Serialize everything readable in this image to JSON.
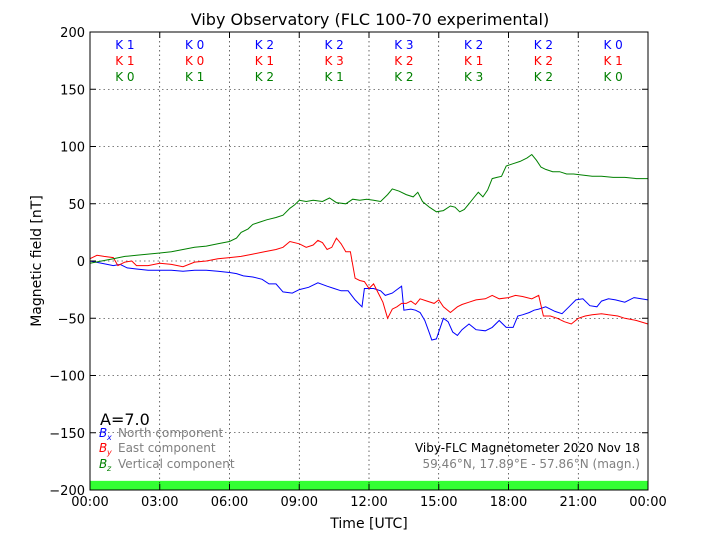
{
  "chart_data": {
    "type": "line",
    "title": "Viby Observatory (FLC 100-70 experimental)",
    "xlabel": "Time [UTC]",
    "ylabel": "Magnetic field [nT]",
    "xlim": [
      0,
      24
    ],
    "ylim": [
      -200,
      200
    ],
    "x_ticks": [
      {
        "v": 0,
        "label": "00:00"
      },
      {
        "v": 3,
        "label": "03:00"
      },
      {
        "v": 6,
        "label": "06:00"
      },
      {
        "v": 9,
        "label": "09:00"
      },
      {
        "v": 12,
        "label": "12:00"
      },
      {
        "v": 15,
        "label": "15:00"
      },
      {
        "v": 18,
        "label": "18:00"
      },
      {
        "v": 21,
        "label": "21:00"
      },
      {
        "v": 24,
        "label": "00:00"
      }
    ],
    "y_ticks": [
      {
        "v": 200,
        "label": "200"
      },
      {
        "v": 150,
        "label": "150"
      },
      {
        "v": 100,
        "label": "100"
      },
      {
        "v": 50,
        "label": "50"
      },
      {
        "v": 0,
        "label": "0"
      },
      {
        "v": -50,
        "label": "−50"
      },
      {
        "v": -100,
        "label": "−100"
      },
      {
        "v": -150,
        "label": "−150"
      },
      {
        "v": -200,
        "label": "−200"
      }
    ],
    "grid": true,
    "k_index": {
      "x_centers": [
        1.5,
        4.5,
        7.5,
        10.5,
        13.5,
        16.5,
        19.5,
        22.5
      ],
      "rows": [
        {
          "color": "#0000ff",
          "labels": [
            "K 1",
            "K 0",
            "K 2",
            "K 2",
            "K 3",
            "K 2",
            "K 2",
            "K 0"
          ]
        },
        {
          "color": "#ff0000",
          "labels": [
            "K 1",
            "K 0",
            "K 1",
            "K 3",
            "K 2",
            "K 1",
            "K 2",
            "K 1"
          ]
        },
        {
          "color": "#008000",
          "labels": [
            "K 0",
            "K 1",
            "K 2",
            "K 1",
            "K 2",
            "K 3",
            "K 2",
            "K 0"
          ]
        }
      ]
    },
    "a_index": "A=7.0",
    "legend": {
      "placement": "bottom-left",
      "entries": [
        {
          "sym": "B",
          "sub": "x",
          "label": "North component",
          "color": "#0000ff"
        },
        {
          "sym": "B",
          "sub": "y",
          "label": "East component",
          "color": "#ff0000"
        },
        {
          "sym": "B",
          "sub": "z",
          "label": "Vertical component",
          "color": "#008000"
        }
      ]
    },
    "station_info": {
      "line1": "Viby-FLC Magnetometer 2020 Nov 18",
      "line2": "59.46°N, 17.89°E - 57.86°N (magn.)"
    },
    "activity_band": {
      "color": "#33ff33",
      "y_range": [
        -200,
        -192
      ]
    },
    "series": [
      {
        "name": "North component",
        "color": "#0000ff",
        "points": [
          [
            0,
            0
          ],
          [
            0.5,
            -2
          ],
          [
            1,
            -4
          ],
          [
            1.3,
            -3
          ],
          [
            1.6,
            -6
          ],
          [
            2,
            -7
          ],
          [
            2.5,
            -8
          ],
          [
            3,
            -8
          ],
          [
            3.5,
            -8
          ],
          [
            4,
            -9
          ],
          [
            4.5,
            -8
          ],
          [
            5,
            -8
          ],
          [
            5.5,
            -9
          ],
          [
            6,
            -10
          ],
          [
            6.3,
            -11
          ],
          [
            6.6,
            -13
          ],
          [
            7,
            -14
          ],
          [
            7.4,
            -16
          ],
          [
            7.7,
            -20
          ],
          [
            8,
            -20
          ],
          [
            8.3,
            -27
          ],
          [
            8.7,
            -28
          ],
          [
            9,
            -25
          ],
          [
            9.4,
            -23
          ],
          [
            9.8,
            -19
          ],
          [
            10.2,
            -22
          ],
          [
            10.5,
            -24
          ],
          [
            10.8,
            -26
          ],
          [
            11.1,
            -26
          ],
          [
            11.4,
            -34
          ],
          [
            11.7,
            -40
          ],
          [
            11.8,
            -24
          ],
          [
            12.2,
            -24
          ],
          [
            12.5,
            -26
          ],
          [
            12.7,
            -30
          ],
          [
            13,
            -28
          ],
          [
            13.2,
            -25
          ],
          [
            13.4,
            -22
          ],
          [
            13.5,
            -43
          ],
          [
            13.8,
            -42
          ],
          [
            14,
            -43
          ],
          [
            14.2,
            -45
          ],
          [
            14.4,
            -52
          ],
          [
            14.6,
            -63
          ],
          [
            14.7,
            -69
          ],
          [
            14.9,
            -68
          ],
          [
            15.2,
            -50
          ],
          [
            15.4,
            -53
          ],
          [
            15.6,
            -62
          ],
          [
            15.8,
            -65
          ],
          [
            16,
            -60
          ],
          [
            16.3,
            -55
          ],
          [
            16.6,
            -60
          ],
          [
            17,
            -61
          ],
          [
            17.3,
            -58
          ],
          [
            17.6,
            -52
          ],
          [
            17.9,
            -58
          ],
          [
            18.2,
            -58
          ],
          [
            18.4,
            -48
          ],
          [
            18.6,
            -47
          ],
          [
            18.9,
            -45
          ],
          [
            19.1,
            -43
          ],
          [
            19.3,
            -42
          ],
          [
            19.6,
            -40
          ],
          [
            20,
            -44
          ],
          [
            20.3,
            -46
          ],
          [
            20.6,
            -40
          ],
          [
            20.9,
            -34
          ],
          [
            21.2,
            -33
          ],
          [
            21.5,
            -39
          ],
          [
            21.8,
            -40
          ],
          [
            22,
            -35
          ],
          [
            22.3,
            -33
          ],
          [
            22.6,
            -34
          ],
          [
            23,
            -36
          ],
          [
            23.4,
            -32
          ],
          [
            23.7,
            -33
          ],
          [
            24,
            -34
          ]
        ]
      },
      {
        "name": "East component",
        "color": "#ff0000",
        "points": [
          [
            0,
            2
          ],
          [
            0.3,
            5
          ],
          [
            0.6,
            4
          ],
          [
            1,
            3
          ],
          [
            1.2,
            -4
          ],
          [
            1.5,
            -1
          ],
          [
            1.8,
            0
          ],
          [
            2,
            -4
          ],
          [
            2.5,
            -4
          ],
          [
            3,
            -2
          ],
          [
            3.5,
            -3
          ],
          [
            4,
            -5
          ],
          [
            4.5,
            -1
          ],
          [
            5,
            0
          ],
          [
            5.5,
            2
          ],
          [
            6,
            3
          ],
          [
            6.5,
            4
          ],
          [
            7,
            6
          ],
          [
            7.5,
            8
          ],
          [
            8,
            10
          ],
          [
            8.3,
            12
          ],
          [
            8.6,
            17
          ],
          [
            9,
            15
          ],
          [
            9.3,
            12
          ],
          [
            9.6,
            14
          ],
          [
            9.8,
            18
          ],
          [
            10,
            16
          ],
          [
            10.2,
            10
          ],
          [
            10.4,
            12
          ],
          [
            10.6,
            20
          ],
          [
            10.8,
            15
          ],
          [
            11,
            8
          ],
          [
            11.2,
            8
          ],
          [
            11.4,
            -15
          ],
          [
            11.6,
            -17
          ],
          [
            11.8,
            -18
          ],
          [
            12,
            -24
          ],
          [
            12.2,
            -20
          ],
          [
            12.4,
            -28
          ],
          [
            12.6,
            -36
          ],
          [
            12.8,
            -50
          ],
          [
            13,
            -42
          ],
          [
            13.2,
            -40
          ],
          [
            13.4,
            -37
          ],
          [
            13.6,
            -37
          ],
          [
            13.8,
            -35
          ],
          [
            14,
            -38
          ],
          [
            14.2,
            -33
          ],
          [
            14.5,
            -35
          ],
          [
            14.8,
            -37
          ],
          [
            15,
            -34
          ],
          [
            15.2,
            -40
          ],
          [
            15.5,
            -45
          ],
          [
            15.8,
            -40
          ],
          [
            16,
            -38
          ],
          [
            16.3,
            -36
          ],
          [
            16.6,
            -34
          ],
          [
            17,
            -33
          ],
          [
            17.3,
            -30
          ],
          [
            17.6,
            -33
          ],
          [
            18,
            -32
          ],
          [
            18.3,
            -30
          ],
          [
            18.6,
            -31
          ],
          [
            19,
            -33
          ],
          [
            19.3,
            -30
          ],
          [
            19.5,
            -48
          ],
          [
            19.8,
            -48
          ],
          [
            20.1,
            -50
          ],
          [
            20.4,
            -53
          ],
          [
            20.7,
            -55
          ],
          [
            21,
            -50
          ],
          [
            21.3,
            -48
          ],
          [
            21.6,
            -47
          ],
          [
            22,
            -46
          ],
          [
            22.3,
            -47
          ],
          [
            22.7,
            -48
          ],
          [
            23,
            -50
          ],
          [
            23.5,
            -52
          ],
          [
            24,
            -55
          ]
        ]
      },
      {
        "name": "Vertical component",
        "color": "#008000",
        "points": [
          [
            0,
            -2
          ],
          [
            0.5,
            0
          ],
          [
            1,
            2
          ],
          [
            1.5,
            4
          ],
          [
            2,
            5
          ],
          [
            2.5,
            6
          ],
          [
            3,
            7
          ],
          [
            3.5,
            8
          ],
          [
            4,
            10
          ],
          [
            4.5,
            12
          ],
          [
            5,
            13
          ],
          [
            5.5,
            15
          ],
          [
            6,
            17
          ],
          [
            6.3,
            20
          ],
          [
            6.5,
            25
          ],
          [
            6.8,
            28
          ],
          [
            7,
            32
          ],
          [
            7.3,
            34
          ],
          [
            7.6,
            36
          ],
          [
            8,
            38
          ],
          [
            8.3,
            40
          ],
          [
            8.6,
            46
          ],
          [
            8.8,
            49
          ],
          [
            9,
            53
          ],
          [
            9.3,
            52
          ],
          [
            9.6,
            53
          ],
          [
            10,
            52
          ],
          [
            10.3,
            55
          ],
          [
            10.6,
            51
          ],
          [
            11,
            50
          ],
          [
            11.3,
            54
          ],
          [
            11.6,
            53
          ],
          [
            11.9,
            54
          ],
          [
            12.2,
            53
          ],
          [
            12.5,
            52
          ],
          [
            12.8,
            58
          ],
          [
            13,
            63
          ],
          [
            13.3,
            61
          ],
          [
            13.6,
            58
          ],
          [
            13.9,
            56
          ],
          [
            14.1,
            60
          ],
          [
            14.3,
            52
          ],
          [
            14.6,
            47
          ],
          [
            14.9,
            43
          ],
          [
            15.2,
            44
          ],
          [
            15.5,
            48
          ],
          [
            15.7,
            47
          ],
          [
            15.9,
            43
          ],
          [
            16.1,
            45
          ],
          [
            16.3,
            50
          ],
          [
            16.5,
            55
          ],
          [
            16.7,
            60
          ],
          [
            16.9,
            56
          ],
          [
            17.1,
            62
          ],
          [
            17.3,
            72
          ],
          [
            17.5,
            73
          ],
          [
            17.7,
            74
          ],
          [
            17.9,
            83
          ],
          [
            18.2,
            85
          ],
          [
            18.5,
            87
          ],
          [
            18.8,
            90
          ],
          [
            19,
            93
          ],
          [
            19.2,
            88
          ],
          [
            19.4,
            82
          ],
          [
            19.6,
            80
          ],
          [
            19.9,
            78
          ],
          [
            20.2,
            78
          ],
          [
            20.5,
            76
          ],
          [
            20.8,
            76
          ],
          [
            21.2,
            75
          ],
          [
            21.6,
            74
          ],
          [
            22,
            74
          ],
          [
            22.5,
            73
          ],
          [
            23,
            73
          ],
          [
            23.5,
            72
          ],
          [
            24,
            72
          ]
        ]
      }
    ]
  }
}
